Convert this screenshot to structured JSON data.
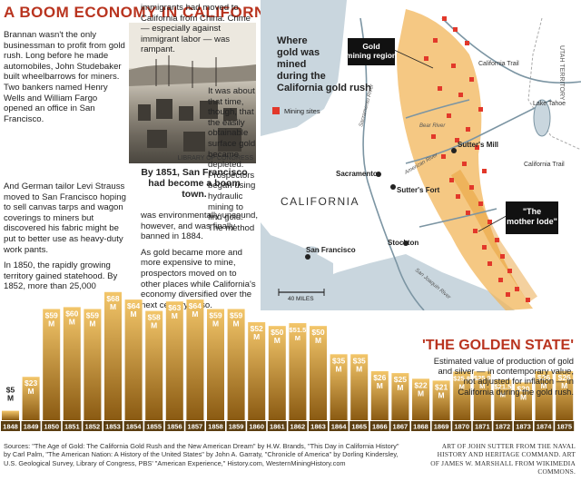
{
  "title": "A BOOM ECONOMY IN CALIFORNIA",
  "article": {
    "col1": [
      "Brannan wasn't the only businessman to profit from gold rush. Long before he made automobiles, John Studebaker built wheelbarrows for miners. Two bankers named Henry Wells and William Fargo opened an office in San Francisco.",
      "And German tailor Levi Strauss moved to San Francisco hoping to sell canvas tarps and wagon coverings to miners but discovered his fabric might be put to better use as heavy-duty work pants.",
      "In 1850, the rapidly growing territory gained statehood. By 1852, more than 25,000"
    ],
    "col2_top": "immigrants had moved to California from China. Crime — especially against immigrant labor — was rampant.",
    "col2_side": "It was about that time, though, that the easily obtainable surface gold became depleted. Prospectors began using hydraulic mining to find gold. The method",
    "col2_bottom": [
      "was environmentally unsound, however, and was finally banned in 1884.",
      "As gold became more and more expensive to mine, prospectors moved on to other places while California's economy diversified over the next century or so."
    ]
  },
  "photo": {
    "credit": "LIBRARY OF CONGRESS",
    "caption": "By 1851, San Francisco had become a boom town."
  },
  "map": {
    "heading": "Where gold was mined during the California gold rush",
    "legend_label": "Mining sites",
    "callout_gold_region": "Gold mining region",
    "callout_mother_lode": "\"The mother lode\"",
    "state_label": "CALIFORNIA",
    "territory_label": "UTAH TERRITORY",
    "scale_label": "40 MILES",
    "places": [
      "Sacramento",
      "Sutter's Fort",
      "Sutter's Mill",
      "Stockton",
      "San Francisco",
      "Lake Tahoe",
      "California Trail",
      "California Trail"
    ],
    "rivers": [
      "Sacramento River",
      "Bear River",
      "American River",
      "San Joaquin River"
    ],
    "colors": {
      "water": "#c9d6de",
      "land": "#ffffff",
      "gold_region": "#f1b65a",
      "sites": "#e2382a",
      "rivers": "#7c95a3"
    }
  },
  "golden_state": {
    "title": "'THE GOLDEN STATE'",
    "description": "Estimated value of production of gold and silver — in contemporary value, not adjusted for inflation — in California during the gold rush."
  },
  "chart_data": {
    "type": "bar",
    "title": "'THE GOLDEN STATE'",
    "unit": "$M",
    "categories": [
      "1848",
      "1849",
      "1850",
      "1851",
      "1852",
      "1853",
      "1854",
      "1855",
      "1856",
      "1857",
      "1858",
      "1859",
      "1860",
      "1861",
      "1862",
      "1863",
      "1864",
      "1865",
      "1866",
      "1867",
      "1868",
      "1869",
      "1870",
      "1871",
      "1872",
      "1873",
      "1874",
      "1875"
    ],
    "values": [
      5,
      23,
      59,
      60,
      59,
      68,
      64,
      58,
      63,
      64,
      59,
      59,
      52,
      50,
      51.5,
      50,
      35,
      35,
      26,
      25,
      22,
      21,
      25.8,
      25.9,
      21.5,
      20,
      26,
      26
    ],
    "labels": [
      "$5 M",
      "$23 M",
      "$59 M",
      "$60 M",
      "$59 M",
      "$68 M",
      "$64 M",
      "$58 M",
      "$63 M",
      "$64 M",
      "$59 M",
      "$59 M",
      "$52 M",
      "$50 M",
      "$51.5 M",
      "$50 M",
      "$35 M",
      "$35 M",
      "$26 M",
      "$25 M",
      "$22 M",
      "$21 M",
      "$25.8 M",
      "$25.9 M",
      "$21.5 M",
      "$20 M",
      "$26 M",
      "$26 M"
    ],
    "ylim": [
      0,
      70
    ],
    "colors": {
      "bar_top": "#f3c66a",
      "bar_bottom": "#8a5a12",
      "label": "#ffffff",
      "tick_bg": "#5a3d10",
      "tick_text": "#ffffff"
    }
  },
  "sources": "Sources: \"The Age of Gold: The California Gold Rush and the New American Dream\" by H.W. Brands, \"This Day in California History\" by Carl Palm, \"The American Nation: A History of the United States\" by John A. Garraty, \"Chronicle of America\" by Dorling Kindersley, U.S. Geological Survey, Library of Congress, PBS' \"American Experience,\" History.com, WesternMiningHistory.com",
  "art_credit": "ART OF JOHN SUTTER FROM THE NAVAL HISTORY AND HERITAGE COMMAND. ART OF JAMES W. MARSHALL FROM WIKIMEDIA COMMONS."
}
